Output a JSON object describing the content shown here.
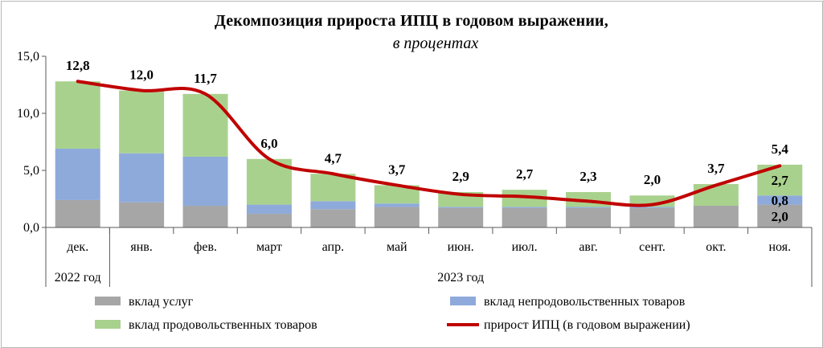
{
  "chart_data": {
    "type": "bar",
    "title": "Декомпозиция прироста ИПЦ в годовом выражении,",
    "subtitle": "в процентах",
    "categories": [
      "дек.",
      "янв.",
      "фев.",
      "март",
      "апр.",
      "май",
      "июн.",
      "июл.",
      "авг.",
      "сент.",
      "окт.",
      "ноя."
    ],
    "year_groups": [
      {
        "label": "2022 год",
        "from": 0,
        "to": 0
      },
      {
        "label": "2023 год",
        "from": 1,
        "to": 11
      }
    ],
    "series": [
      {
        "name": "вклад услуг",
        "type": "stacked-bar",
        "color": "#a6a6a6",
        "values": [
          2.4,
          2.2,
          1.9,
          1.2,
          1.6,
          1.8,
          1.7,
          1.7,
          1.7,
          1.7,
          1.9,
          2.0
        ]
      },
      {
        "name": "вклад непродовольственных товаров",
        "type": "stacked-bar",
        "color": "#8eaadb",
        "values": [
          4.5,
          4.3,
          4.3,
          0.8,
          0.7,
          0.3,
          0.1,
          0.1,
          0.1,
          0.1,
          0.0,
          0.8
        ]
      },
      {
        "name": "вклад продовольственных товаров",
        "type": "stacked-bar",
        "color": "#a9d18e",
        "values": [
          5.9,
          5.5,
          5.5,
          4.0,
          2.4,
          1.6,
          1.3,
          1.5,
          1.3,
          1.0,
          1.9,
          2.7
        ]
      },
      {
        "name": "прирост ИПЦ (в годовом выражении)",
        "type": "line",
        "color": "#c00000",
        "values": [
          12.8,
          12.0,
          11.7,
          6.0,
          4.7,
          3.7,
          2.9,
          2.7,
          2.3,
          2.0,
          3.7,
          5.4
        ]
      }
    ],
    "line_labels": [
      "12,8",
      "12,0",
      "11,7",
      "6,0",
      "4,7",
      "3,7",
      "2,9",
      "2,7",
      "2,3",
      "2,0",
      "3,7",
      "5,4"
    ],
    "last_bar_labels": [
      "2,0",
      "0,8",
      "2,7"
    ],
    "y_ticks": [
      "0,0",
      "5,0",
      "10,0",
      "15,0"
    ],
    "ylim": [
      0,
      15
    ],
    "grid": false,
    "legend_position": "bottom",
    "legend": [
      "вклад услуг",
      "вклад непродовольственных товаров",
      "вклад продовольственных товаров",
      "прирост ИПЦ (в годовом выражении)"
    ]
  }
}
